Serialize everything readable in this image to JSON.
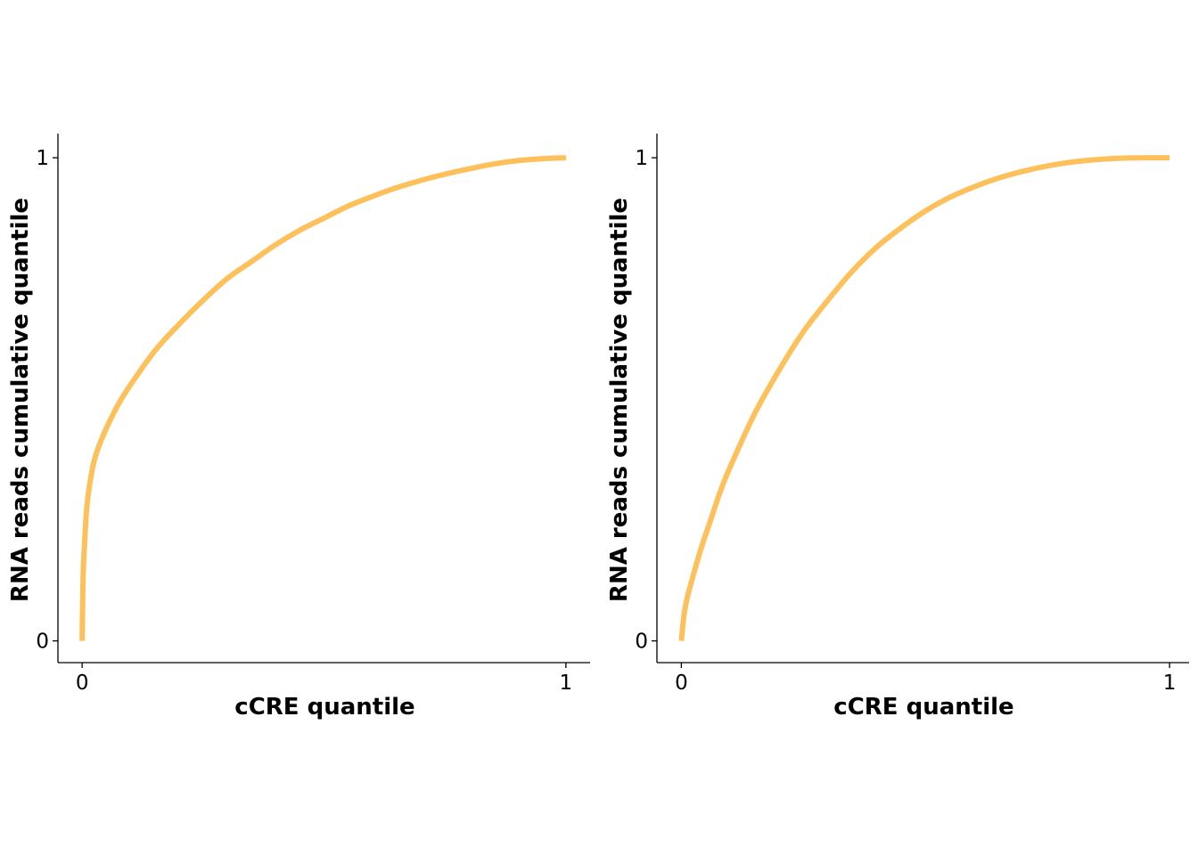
{
  "chart_data": [
    {
      "type": "line",
      "xlabel": "cCRE quantile",
      "ylabel": "RNA reads cumulative quantile",
      "xlim": [
        -0.05,
        1.05
      ],
      "ylim": [
        -0.045,
        1.05
      ],
      "xticks": [
        "0",
        "1"
      ],
      "yticks": [
        "0",
        "1"
      ],
      "grid": false,
      "line_color": "#fdc05a",
      "series": [
        {
          "x": [
            0,
            0.002,
            0.005,
            0.01,
            0.02,
            0.03,
            0.05,
            0.075,
            0.1,
            0.15,
            0.2,
            0.25,
            0.3,
            0.35,
            0.4,
            0.45,
            0.5,
            0.55,
            0.6,
            0.65,
            0.7,
            0.75,
            0.8,
            0.85,
            0.9,
            0.95,
            1.0
          ],
          "y": [
            0,
            0.13,
            0.2,
            0.28,
            0.35,
            0.39,
            0.44,
            0.49,
            0.53,
            0.6,
            0.655,
            0.705,
            0.75,
            0.785,
            0.82,
            0.85,
            0.875,
            0.9,
            0.92,
            0.938,
            0.953,
            0.966,
            0.977,
            0.987,
            0.994,
            0.998,
            1.0
          ]
        }
      ]
    },
    {
      "type": "line",
      "xlabel": "cCRE quantile",
      "ylabel": "RNA reads cumulative quantile",
      "xlim": [
        -0.05,
        1.04
      ],
      "ylim": [
        -0.045,
        1.05
      ],
      "xticks": [
        "0",
        "1"
      ],
      "yticks": [
        "0",
        "1"
      ],
      "grid": false,
      "line_color": "#fdc05a",
      "series": [
        {
          "x": [
            0,
            0.005,
            0.01,
            0.02,
            0.04,
            0.06,
            0.08,
            0.1,
            0.15,
            0.2,
            0.25,
            0.3,
            0.35,
            0.4,
            0.45,
            0.5,
            0.55,
            0.6,
            0.65,
            0.7,
            0.75,
            0.8,
            0.85,
            0.9,
            0.95,
            1.0
          ],
          "y": [
            0,
            0.05,
            0.08,
            0.12,
            0.19,
            0.25,
            0.31,
            0.36,
            0.47,
            0.56,
            0.64,
            0.705,
            0.765,
            0.815,
            0.855,
            0.89,
            0.918,
            0.94,
            0.958,
            0.972,
            0.983,
            0.991,
            0.996,
            0.999,
            1.0,
            1.0
          ]
        }
      ]
    }
  ]
}
